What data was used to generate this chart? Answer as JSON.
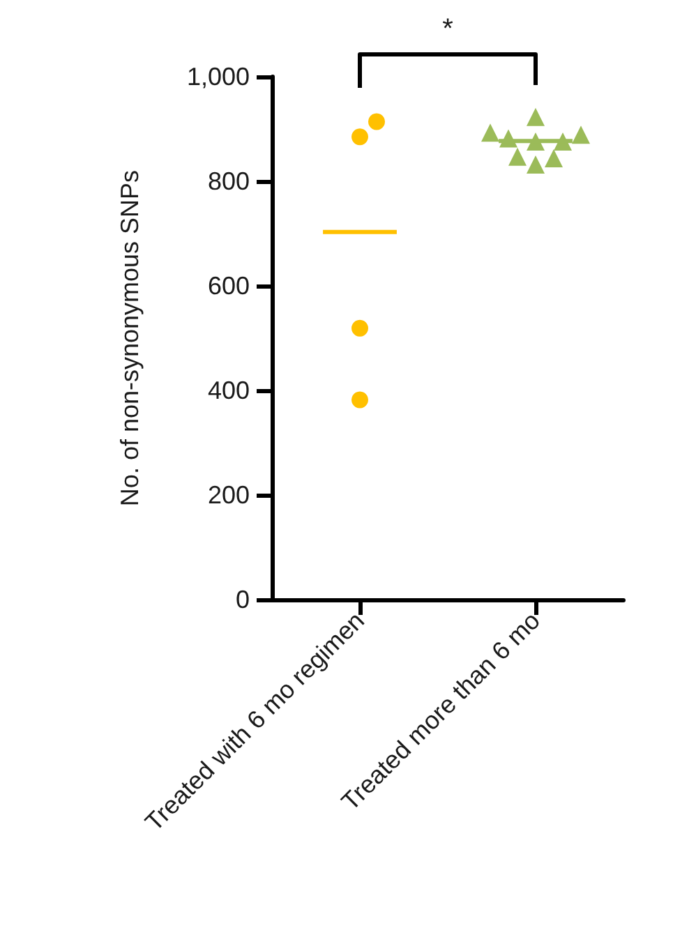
{
  "chart_data": {
    "type": "scatter",
    "ylabel": "No. of non-synonymous SNPs",
    "annotations": [
      "*"
    ],
    "categories": [
      "Treated with 6 mo regimen",
      "Treated more than 6 mo"
    ],
    "ylim": [
      0,
      1000
    ],
    "yticks": [
      0,
      200,
      400,
      600,
      800,
      {
        "value": 1000,
        "label": "1,000"
      }
    ],
    "ref_lines": [
      {
        "axis": "y",
        "value": 703,
        "color": "#ffc000"
      },
      {
        "axis": "y",
        "value": 877,
        "color": "#9bbb59"
      }
    ],
    "series": [
      {
        "color": "#ffc000",
        "marker": "circle",
        "x": [
          "Treated with 6 mo regimen",
          "Treated with 6 mo regimen",
          "Treated with 6 mo regimen",
          "Treated with 6 mo regimen"
        ],
        "values": [
          885,
          914,
          519,
          382
        ]
      },
      {
        "color": "#9bbb59",
        "marker": "triangle",
        "x": [
          "Treated more than 6 mo",
          "Treated more than 6 mo",
          "Treated more than 6 mo",
          "Treated more than 6 mo",
          "Treated more than 6 mo",
          "Treated more than 6 mo",
          "Treated more than 6 mo",
          "Treated more than 6 mo",
          "Treated more than 6 mo"
        ],
        "values": [
          893,
          923,
          876,
          889,
          876,
          882,
          832,
          847,
          844
        ]
      }
    ]
  }
}
